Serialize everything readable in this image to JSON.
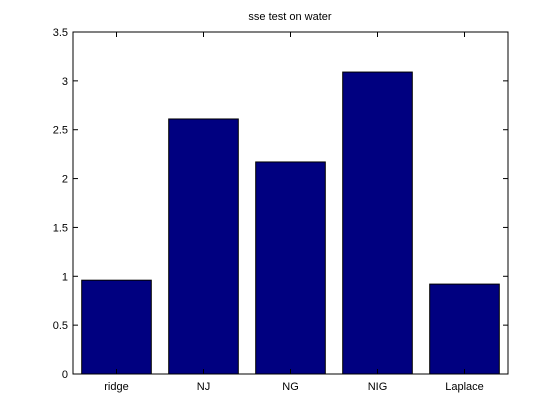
{
  "chart_data": {
    "type": "bar",
    "title": "sse test on water",
    "xlabel": "",
    "ylabel": "",
    "categories": [
      "ridge",
      "NJ",
      "NG",
      "NIG",
      "Laplace"
    ],
    "values": [
      0.96,
      2.61,
      2.17,
      3.09,
      0.92
    ],
    "ylim": [
      0,
      3.5
    ],
    "yticks": [
      "0",
      "0.5",
      "1",
      "1.5",
      "2",
      "2.5",
      "3",
      "3.5"
    ],
    "grid": false,
    "legend": "none",
    "bar_color": "#000080",
    "axis_color": "#000000",
    "background_color": "#ffffff"
  }
}
